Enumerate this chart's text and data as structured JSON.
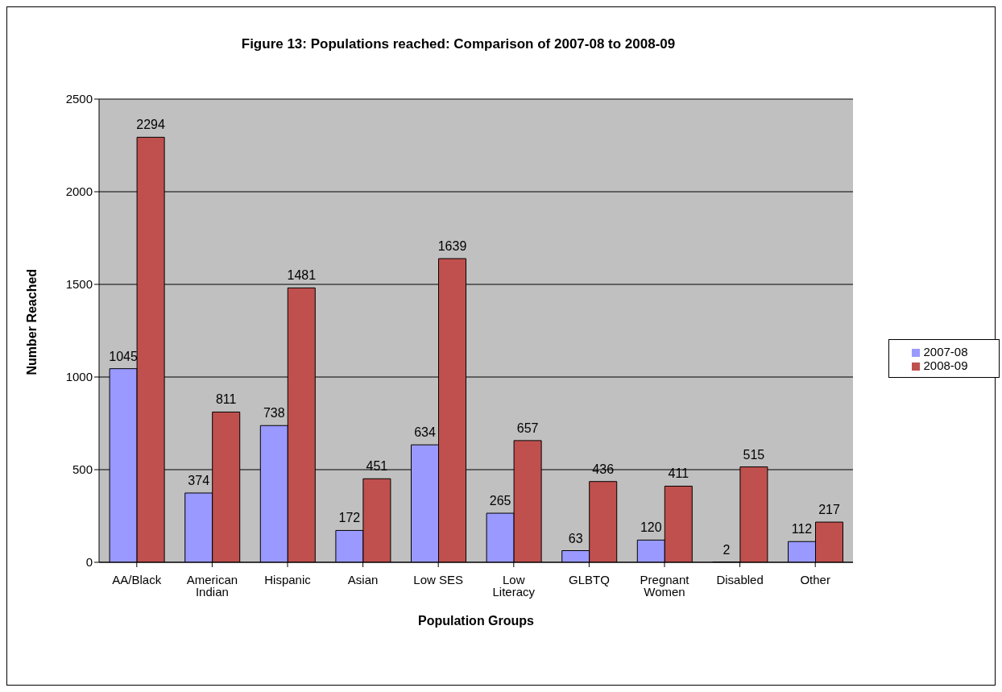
{
  "chart_data": {
    "type": "bar",
    "title": "Figure 13: Populations reached: Comparison of 2007-08 to 2008-09",
    "xlabel": "Population Groups",
    "ylabel": "Number Reached",
    "categories": [
      "AA/Black",
      "American Indian",
      "Hispanic",
      "Asian",
      "Low SES",
      "Low Literacy",
      "GLBTQ",
      "Pregnant Women",
      "Disabled",
      "Other"
    ],
    "series": [
      {
        "name": "2007-08",
        "color": "#9999ff",
        "values": [
          1045,
          374,
          738,
          172,
          634,
          265,
          63,
          120,
          2,
          112
        ]
      },
      {
        "name": "2008-09",
        "color": "#c0504d",
        "values": [
          2294,
          811,
          1481,
          451,
          1639,
          657,
          436,
          411,
          515,
          217
        ]
      }
    ],
    "ylim": [
      0,
      2500
    ],
    "yticks": [
      0,
      500,
      1000,
      1500,
      2000,
      2500
    ],
    "grid": "y",
    "legend": "right",
    "data_labels": true
  }
}
